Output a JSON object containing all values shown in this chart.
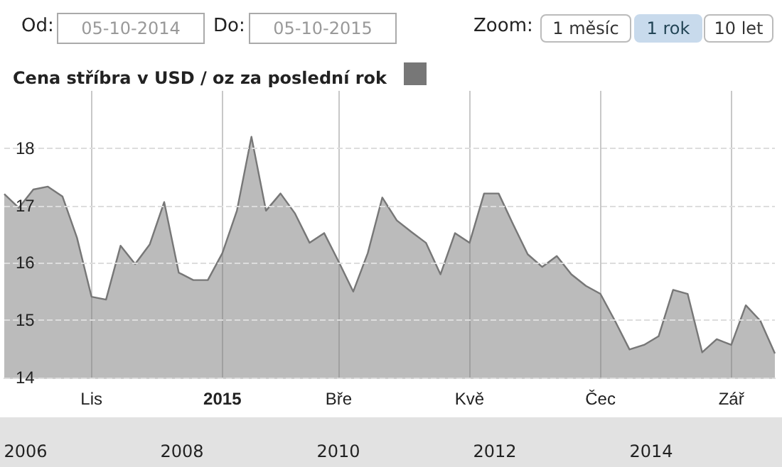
{
  "chart_data": {
    "type": "area",
    "title": "Cena stříbra v USD / oz za poslední rok",
    "annotations": [
      "Od:",
      "05-10-2014",
      "Do:",
      "05-10-2015",
      "Zoom:",
      "1 měsíc",
      "1 rok",
      "10 let",
      "2006",
      "2008",
      "2010",
      "2012",
      "2014"
    ],
    "categories": [
      null,
      null,
      null,
      null,
      null,
      null,
      "Lis",
      null,
      null,
      null,
      null,
      null,
      null,
      null,
      null,
      "2015",
      null,
      null,
      null,
      null,
      null,
      null,
      null,
      "Bře",
      null,
      null,
      null,
      null,
      null,
      null,
      null,
      null,
      "Kvě",
      null,
      null,
      null,
      null,
      null,
      null,
      null,
      null,
      "Čec",
      null,
      null,
      null,
      null,
      null,
      null,
      null,
      null,
      "Zář",
      null,
      null,
      null
    ],
    "series": [
      {
        "color": "#777777",
        "values": [
          17.2,
          16.96,
          17.28,
          17.33,
          17.16,
          16.44,
          15.41,
          15.36,
          16.3,
          15.98,
          16.32,
          17.06,
          15.83,
          15.7,
          15.7,
          16.17,
          16.91,
          18.2,
          16.91,
          17.21,
          16.86,
          16.35,
          16.52,
          16.02,
          15.5,
          16.17,
          17.14,
          16.74,
          16.54,
          16.35,
          15.8,
          16.52,
          16.35,
          17.21,
          17.21,
          16.67,
          16.15,
          15.93,
          16.12,
          15.8,
          15.6,
          15.46,
          14.99,
          14.49,
          14.57,
          14.72,
          15.53,
          15.46,
          14.44,
          14.67,
          14.57,
          15.26,
          14.99,
          14.42
        ]
      }
    ],
    "ylim": [
      14,
      19
    ],
    "yticks": [
      14,
      15,
      16,
      17,
      18
    ],
    "grid": true
  }
}
